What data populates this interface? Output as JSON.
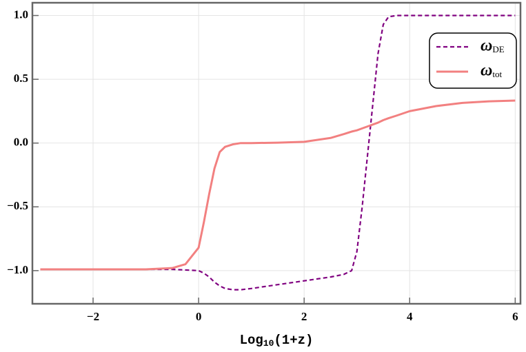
{
  "chart_data": {
    "type": "line",
    "x_label": "Log10(1+z)",
    "x": [
      -3,
      -2,
      -1,
      -0.5,
      -0.25,
      0,
      0.1,
      0.2,
      0.3,
      0.4,
      0.5,
      0.65,
      0.8,
      1,
      1.5,
      2,
      2.5,
      2.75,
      2.9,
      3,
      3.1,
      3.2,
      3.3,
      3.4,
      3.5,
      3.6,
      3.75,
      4,
      4.5,
      5,
      5.5,
      6
    ],
    "series": [
      {
        "name": "ωDE",
        "color": "#800080",
        "dashed": true,
        "values": [
          -0.99,
          -0.99,
          -0.99,
          -0.99,
          -0.995,
          -1.0,
          -1.02,
          -1.05,
          -1.09,
          -1.12,
          -1.14,
          -1.15,
          -1.15,
          -1.14,
          -1.11,
          -1.08,
          -1.05,
          -1.03,
          -1.0,
          -0.85,
          -0.5,
          -0.1,
          0.3,
          0.7,
          0.93,
          0.99,
          1.0,
          1.0,
          1.0,
          1.0,
          1.0,
          1.0
        ]
      },
      {
        "name": "ωtot",
        "color": "#f28080",
        "dashed": false,
        "values": [
          -0.99,
          -0.99,
          -0.99,
          -0.98,
          -0.95,
          -0.82,
          -0.62,
          -0.4,
          -0.2,
          -0.07,
          -0.03,
          -0.01,
          0,
          0,
          0.003,
          0.01,
          0.04,
          0.07,
          0.09,
          0.1,
          0.115,
          0.13,
          0.145,
          0.16,
          0.18,
          0.195,
          0.215,
          0.25,
          0.29,
          0.315,
          0.327,
          0.333
        ]
      }
    ],
    "xlim": [
      -3.15,
      6.1
    ],
    "ylim": [
      -1.26,
      1.1
    ],
    "xticks": [
      {
        "value": -2,
        "label": "−2"
      },
      0,
      2,
      4,
      6
    ],
    "yticks": [
      {
        "value": -1,
        "label": "−1.0"
      },
      {
        "value": -0.5,
        "label": "−0.5"
      },
      {
        "value": 0,
        "label": "0.0"
      },
      {
        "value": 0.5,
        "label": "0.5"
      },
      {
        "value": 1,
        "label": "1.0"
      }
    ],
    "grid": true,
    "legend": "top-right"
  }
}
